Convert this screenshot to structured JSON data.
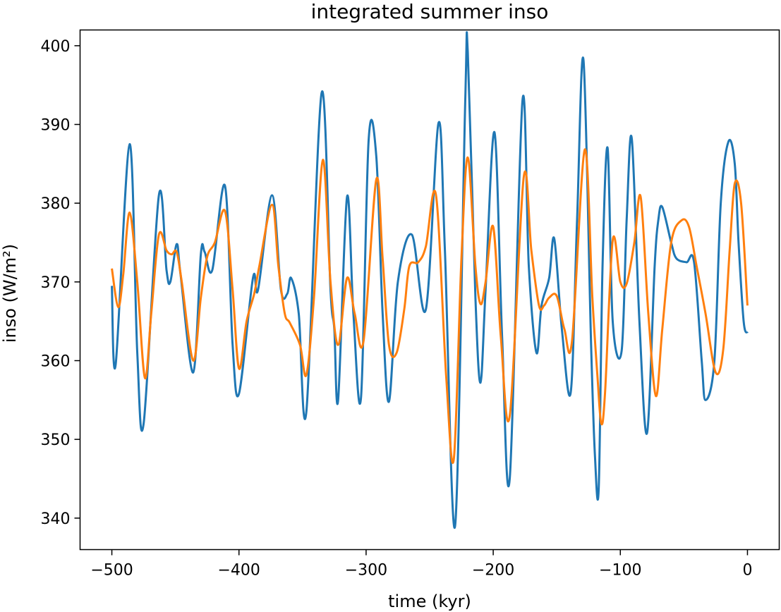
{
  "chart_data": {
    "type": "line",
    "title": "integrated summer inso",
    "xlabel": "time (kyr)",
    "ylabel": "inso (W/m²)",
    "xlim": [
      -525,
      25
    ],
    "ylim": [
      336,
      402
    ],
    "xticks": [
      -500,
      -400,
      -300,
      -200,
      -100,
      0
    ],
    "xtick_labels": [
      "−500",
      "−400",
      "−300",
      "−200",
      "−100",
      "0"
    ],
    "yticks": [
      340,
      350,
      360,
      370,
      380,
      390,
      400
    ],
    "ytick_labels": [
      "340",
      "350",
      "360",
      "370",
      "380",
      "390",
      "400"
    ],
    "grid": false,
    "series": [
      {
        "color": "#1f77b4",
        "x": [
          -500,
          -497,
          -486,
          -480,
          -475,
          -463,
          -457,
          -454,
          -449,
          -446,
          -436,
          -430,
          -427,
          -421,
          -411,
          -405,
          -400,
          -389,
          -385,
          -374,
          -367,
          -362,
          -359,
          -353,
          -347,
          -335,
          -328,
          -325,
          -322,
          -315,
          -310,
          -304,
          -298,
          -292,
          -287,
          -282,
          -275,
          -264,
          -253,
          -243,
          -238,
          -230,
          -222,
          -220,
          -214,
          -210,
          -206,
          -199,
          -193,
          -187,
          -177,
          -172,
          -166,
          -162,
          -156,
          -152,
          -146,
          -139,
          -134,
          -129,
          -123,
          -120,
          -117,
          -114,
          -110,
          -106,
          -99,
          -95,
          -91,
          -85,
          -79,
          -73,
          -70,
          -67,
          -60,
          -56,
          -48,
          -42,
          -36,
          -33,
          -26,
          -21,
          -15,
          -10,
          -7,
          -3,
          0
        ],
        "y": [
          369.5,
          359.5,
          387.5,
          361,
          352,
          381,
          371.5,
          370,
          374.8,
          371,
          358.5,
          373.5,
          373.8,
          371.5,
          382.2,
          362,
          355.8,
          370.5,
          369,
          381,
          369,
          368.5,
          370.5,
          366,
          353.5,
          394,
          369,
          364,
          355,
          380.8,
          366,
          355.3,
          388,
          386,
          366,
          354.8,
          370,
          376,
          366.5,
          390.2,
          374,
          339,
          393,
          399.2,
          368,
          357.2,
          369,
          389,
          363,
          345,
          393,
          372,
          361,
          367,
          370.5,
          375.5,
          364,
          356,
          378,
          398.2,
          362,
          348,
          343.8,
          372,
          387,
          365,
          361.2,
          378,
          388.2,
          365,
          350.8,
          372,
          378,
          379.5,
          375,
          373,
          372.5,
          372.5,
          360,
          355,
          360,
          380,
          387.8,
          385,
          375,
          365,
          363.5
        ]
      },
      {
        "color": "#ff7f0e",
        "x": [
          -500,
          -495,
          -491,
          -486,
          -480,
          -474,
          -469,
          -463,
          -457,
          -453,
          -449,
          -445,
          -436,
          -430,
          -425,
          -419,
          -411,
          -405,
          -400,
          -394,
          -388,
          -384,
          -374,
          -369,
          -364,
          -360,
          -352,
          -347,
          -341,
          -334,
          -328,
          -322,
          -315,
          -309,
          -302,
          -292,
          -287,
          -282,
          -276,
          -270,
          -266,
          -259,
          -253,
          -245,
          -237,
          -231,
          -225,
          -220,
          -214,
          -210,
          -206,
          -200,
          -194,
          -187,
          -176,
          -170,
          -164,
          -160,
          -156,
          -150,
          -144,
          -138,
          -128,
          -122,
          -118,
          -115,
          -112,
          -106,
          -100,
          -95,
          -89,
          -84,
          -78,
          -72,
          -67,
          -60,
          -52,
          -46,
          -40,
          -33,
          -25,
          -19,
          -14,
          -10,
          -5,
          0
        ],
        "y": [
          371.7,
          366.8,
          371,
          378.8,
          370,
          357.8,
          366,
          376,
          374,
          373.5,
          373.8,
          370,
          360,
          368,
          373.2,
          375,
          379,
          369,
          359,
          365,
          368.5,
          372,
          379.8,
          372,
          366,
          364.8,
          362,
          358.2,
          368,
          385.5,
          370,
          362,
          370.5,
          366,
          362.5,
          383,
          373,
          362,
          361,
          366.5,
          372,
          372.5,
          374.5,
          381,
          358,
          347.5,
          373,
          385.8,
          372,
          367.2,
          370,
          377,
          363,
          353,
          383.3,
          374,
          367,
          367,
          368,
          368.2,
          364,
          362.5,
          386.8,
          368,
          358,
          352,
          356,
          375.3,
          370,
          369.8,
          375,
          380.8,
          366,
          355.5,
          364,
          375,
          377.8,
          377,
          372,
          366,
          358.5,
          361.5,
          374,
          382.5,
          380,
          367
        ]
      }
    ]
  }
}
